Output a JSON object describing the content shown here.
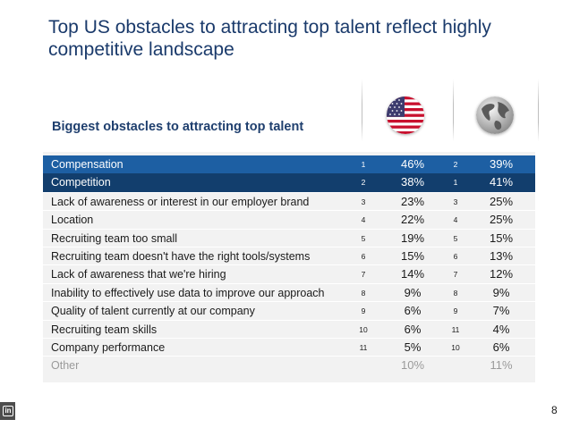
{
  "title": "Top US obstacles to attracting top talent reflect highly competitive landscape",
  "subtitle": "Biggest obstacles to attracting top talent",
  "icons": {
    "us": "us-flag-icon",
    "global": "globe-icon",
    "brand": "linkedin-icon"
  },
  "colors": {
    "title": "#1a3a6b",
    "highlight_1": "#1d5fa3",
    "highlight_2": "#123e6d",
    "table_bg": "#f2f2f2"
  },
  "rows": [
    {
      "label": "Compensation",
      "us_rank": "1",
      "us_pct": "46%",
      "global_rank": "2",
      "global_pct": "39%"
    },
    {
      "label": "Competition",
      "us_rank": "2",
      "us_pct": "38%",
      "global_rank": "1",
      "global_pct": "41%"
    },
    {
      "label": "Lack of awareness or interest in our employer brand",
      "us_rank": "3",
      "us_pct": "23%",
      "global_rank": "3",
      "global_pct": "25%"
    },
    {
      "label": "Location",
      "us_rank": "4",
      "us_pct": "22%",
      "global_rank": "4",
      "global_pct": "25%"
    },
    {
      "label": "Recruiting team too small",
      "us_rank": "5",
      "us_pct": "19%",
      "global_rank": "5",
      "global_pct": "15%"
    },
    {
      "label": "Recruiting team doesn't have the right tools/systems",
      "us_rank": "6",
      "us_pct": "15%",
      "global_rank": "6",
      "global_pct": "13%"
    },
    {
      "label": "Lack of awareness that we're hiring",
      "us_rank": "7",
      "us_pct": "14%",
      "global_rank": "7",
      "global_pct": "12%"
    },
    {
      "label": "Inability to effectively use data to improve our approach",
      "us_rank": "8",
      "us_pct": "9%",
      "global_rank": "8",
      "global_pct": "9%"
    },
    {
      "label": "Quality of talent currently at our company",
      "us_rank": "9",
      "us_pct": "6%",
      "global_rank": "9",
      "global_pct": "7%"
    },
    {
      "label": "Recruiting team skills",
      "us_rank": "10",
      "us_pct": "6%",
      "global_rank": "11",
      "global_pct": "4%"
    },
    {
      "label": "Company performance",
      "us_rank": "11",
      "us_pct": "5%",
      "global_rank": "10",
      "global_pct": "6%"
    },
    {
      "label": "Other",
      "us_rank": "",
      "us_pct": "10%",
      "global_rank": "",
      "global_pct": "11%"
    }
  ],
  "page_number": "8"
}
